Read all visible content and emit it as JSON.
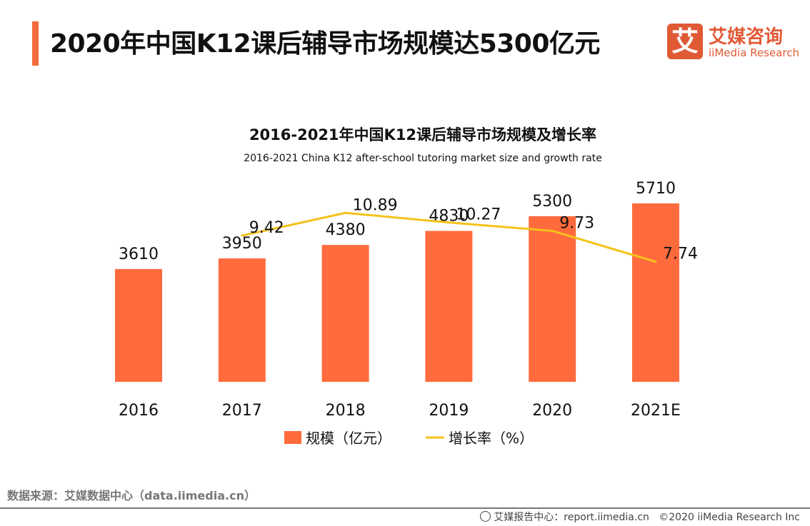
{
  "header": {
    "title": "2020年中国K12课后辅导市场规模达5300亿元"
  },
  "logo": {
    "cn": "艾媒咨询",
    "en": "iiMedia Research",
    "mark": "艾"
  },
  "chart_data": {
    "type": "bar+line",
    "title": "2016-2021年中国K12课后辅导市场规模及增长率",
    "subtitle": "2016-2021 China K12 after-school tutoring market size and growth rate",
    "categories": [
      "2016",
      "2017",
      "2018",
      "2019",
      "2020",
      "2021E"
    ],
    "series": [
      {
        "name": "规模（亿元）",
        "type": "bar",
        "axis": "left",
        "values": [
          3610,
          3950,
          4380,
          4830,
          5300,
          5710
        ],
        "color": "#FF6B3D"
      },
      {
        "name": "增长率（%）",
        "type": "line",
        "axis": "right",
        "values": [
          null,
          9.42,
          10.89,
          10.27,
          9.73,
          7.74
        ],
        "color": "#F5C21B"
      }
    ],
    "ylim": [
      0,
      5710
    ],
    "y2lim": [
      0,
      11.5
    ],
    "grid": false,
    "legend": "bottom"
  },
  "footer": {
    "source": "数据来源：艾媒数据中心（data.iimedia.cn）",
    "report": "艾媒报告中心：report.iimedia.cn",
    "copyright": "©2020  iiMedia Research  Inc"
  }
}
